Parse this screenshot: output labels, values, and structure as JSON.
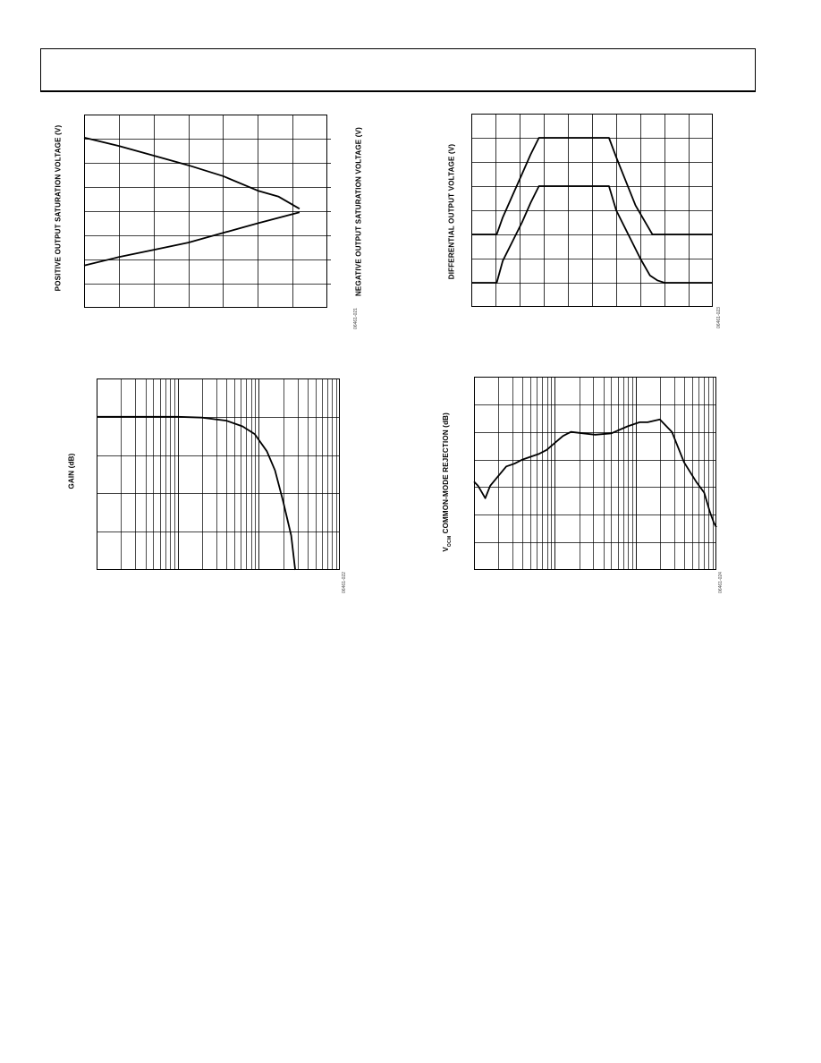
{
  "page": {
    "header": ""
  },
  "charts": {
    "c1": {
      "ylabel_left": "POSITIVE OUTPUT SATURATION VOLTAGE (V)",
      "ylabel_right": "NEGATIVE OUTPUT SATURATION VOLTAGE (V)",
      "fig_id": "06461-021"
    },
    "c2": {
      "ylabel": "DIFFERENTIAL OUTPUT VOLTAGE (V)",
      "fig_id": "06461-023"
    },
    "c3": {
      "ylabel": "GAIN (dB)",
      "fig_id": "06461-022"
    },
    "c4": {
      "ylabel_prefix": "V",
      "ylabel_sub": "OCM",
      "ylabel_suffix": " COMMON-MODE REJECTION (dB)",
      "fig_id": "06461-024"
    }
  },
  "chart_data": [
    {
      "id": "c1",
      "type": "line",
      "x_divisions": 7,
      "y_divisions": 8,
      "ylim_left": [
        0,
        8
      ],
      "ylim_right": [
        0,
        8
      ],
      "series": [
        {
          "x": [
            0,
            1.0,
            2.0,
            3.0,
            4.0,
            5.0,
            5.6,
            6.2
          ],
          "y": [
            7.05,
            6.7,
            6.3,
            5.9,
            5.45,
            4.85,
            4.6,
            4.1
          ]
        },
        {
          "x": [
            0,
            1.0,
            2.0,
            3.0,
            4.0,
            5.0,
            6.2
          ],
          "y": [
            1.75,
            2.1,
            2.4,
            2.7,
            3.1,
            3.5,
            3.95
          ]
        }
      ]
    },
    {
      "id": "c2",
      "type": "line",
      "x_divisions": 10,
      "y_divisions": 8,
      "ylim": [
        0,
        8
      ],
      "series": [
        {
          "x": [
            0,
            1.05,
            1.3,
            1.7,
            2.1,
            2.45,
            2.8,
            3.3,
            4.0,
            5.0,
            5.7,
            6.0,
            6.4,
            6.8,
            7.5,
            8.0,
            9.0,
            10.0
          ],
          "y": [
            3.0,
            3.0,
            3.7,
            4.6,
            5.5,
            6.3,
            7.0,
            7.0,
            7.0,
            7.0,
            7.0,
            6.2,
            5.2,
            4.2,
            3.0,
            3.0,
            3.0,
            3.0
          ]
        },
        {
          "x": [
            0,
            1.05,
            1.3,
            1.7,
            2.1,
            2.45,
            2.8,
            3.3,
            4.0,
            5.0,
            5.7,
            6.0,
            6.5,
            7.0,
            7.4,
            7.7,
            8.0,
            9.0,
            10.0
          ],
          "y": [
            1.0,
            1.0,
            1.9,
            2.7,
            3.5,
            4.3,
            5.0,
            5.0,
            5.0,
            5.0,
            5.0,
            4.0,
            3.0,
            2.0,
            1.3,
            1.1,
            1.0,
            1.0,
            1.0
          ]
        }
      ]
    },
    {
      "id": "c3",
      "type": "line",
      "log_x": true,
      "x_decades": 3,
      "y_divisions": 5,
      "ylim": [
        0,
        5
      ],
      "series": [
        {
          "x": [
            0,
            0.6,
            1.0,
            1.3,
            1.6,
            1.8,
            1.95,
            2.1,
            2.2,
            2.3,
            2.4,
            2.45
          ],
          "y": [
            4.0,
            4.0,
            4.0,
            3.98,
            3.9,
            3.75,
            3.55,
            3.1,
            2.6,
            1.8,
            0.9,
            0.0
          ]
        }
      ]
    },
    {
      "id": "c4",
      "type": "line",
      "log_x": true,
      "x_decades": 3,
      "y_divisions": 7,
      "ylim": [
        0,
        7
      ],
      "series": [
        {
          "x": [
            0,
            0.05,
            0.1,
            0.14,
            0.2,
            0.3,
            0.4,
            0.5,
            0.6,
            0.7,
            0.8,
            0.9,
            1.0,
            1.1,
            1.2,
            1.35,
            1.5,
            1.7,
            1.9,
            2.05,
            2.15,
            2.3,
            2.45,
            2.6,
            2.75,
            2.85,
            2.92,
            2.97,
            3.0
          ],
          "y": [
            3.2,
            3.05,
            2.8,
            2.6,
            3.05,
            3.4,
            3.75,
            3.85,
            4.0,
            4.1,
            4.2,
            4.35,
            4.6,
            4.85,
            5.0,
            4.95,
            4.9,
            4.95,
            5.2,
            5.35,
            5.35,
            5.45,
            5.0,
            3.9,
            3.2,
            2.8,
            2.1,
            1.7,
            1.55
          ]
        }
      ]
    }
  ]
}
